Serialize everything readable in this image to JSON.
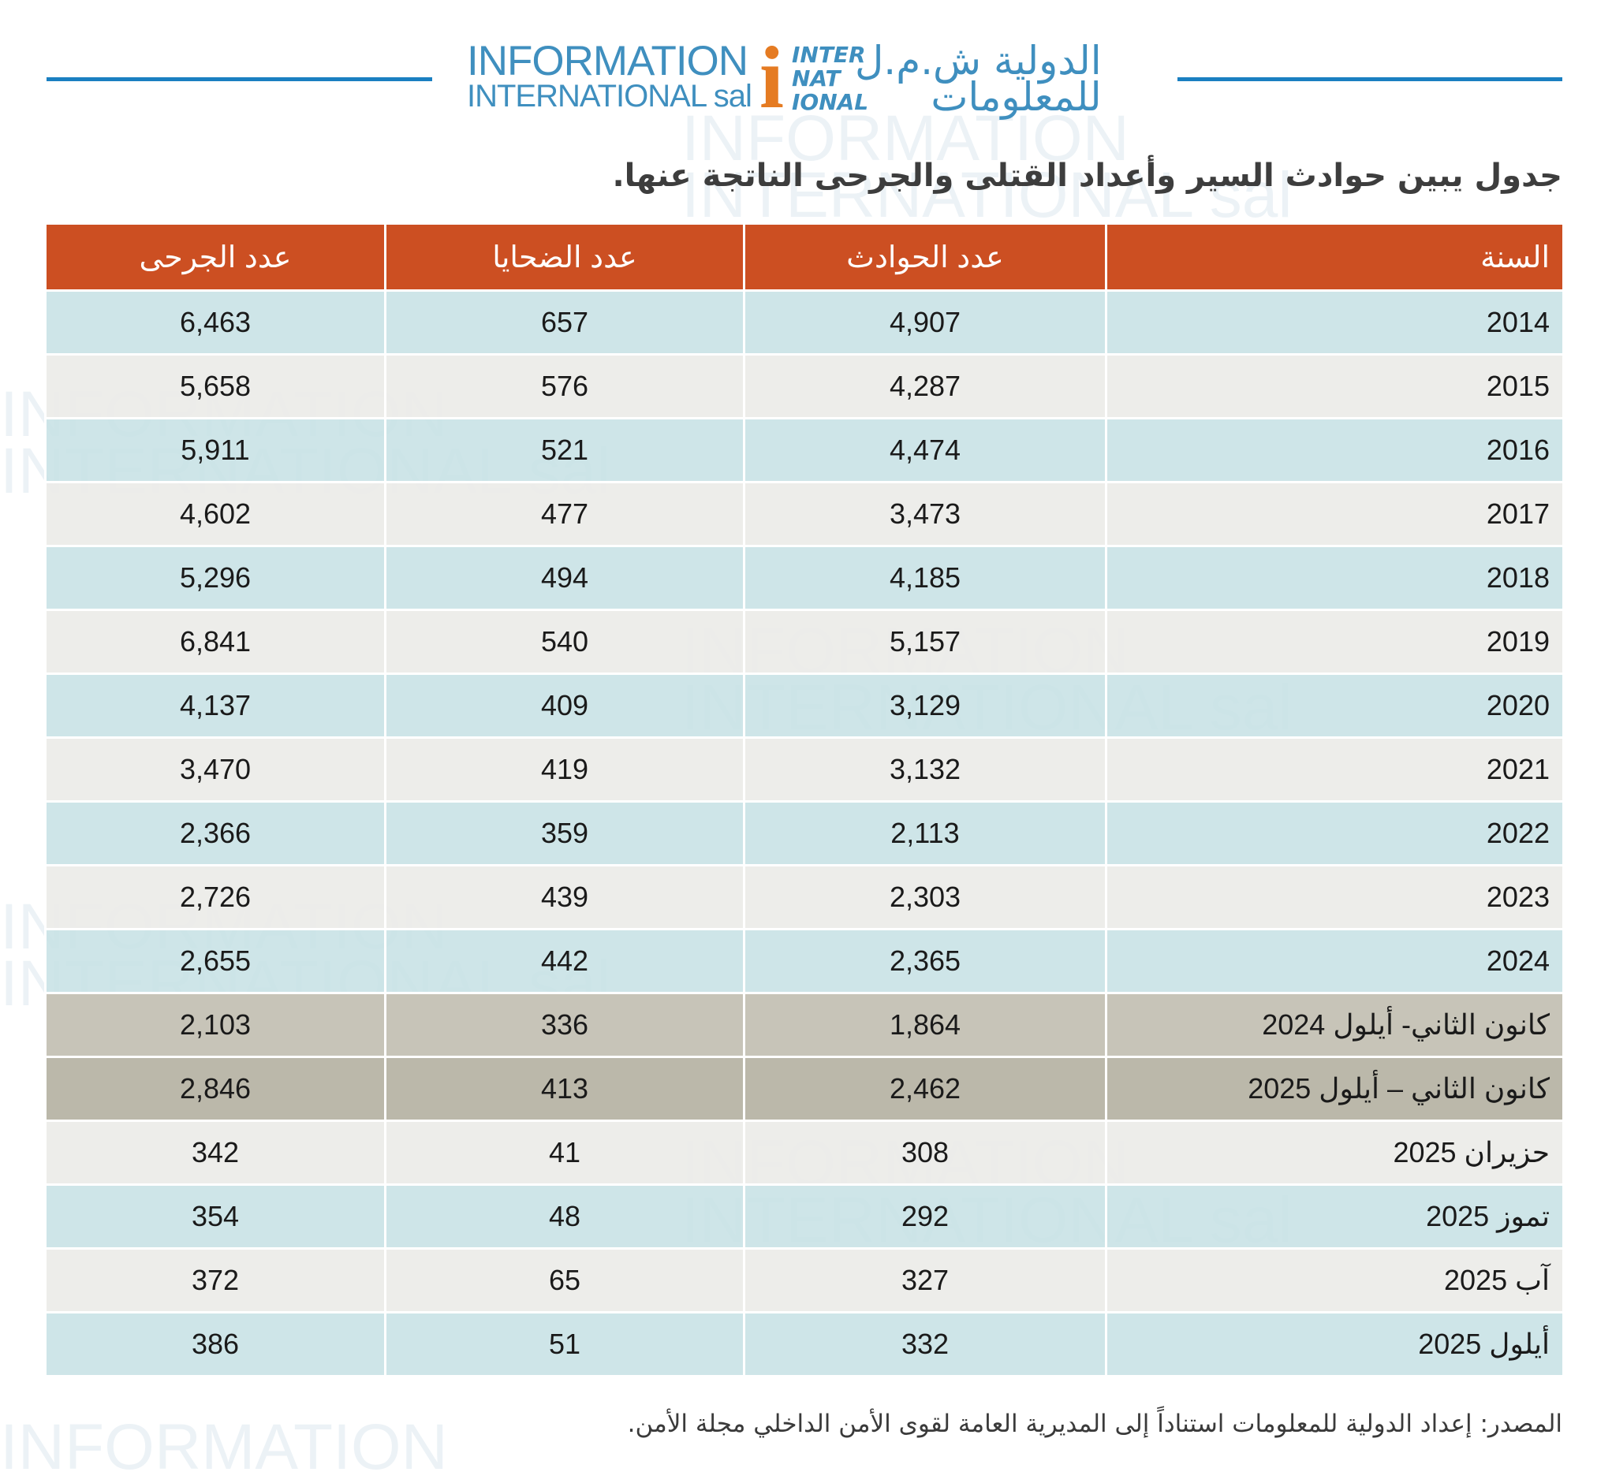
{
  "logo": {
    "en_line1": "INFORMATION",
    "en_line2": "INTERNATIONAL sal",
    "i_letter": "i",
    "mark": "INTER NAT IONAL",
    "ar_line1": "الدولية ش.م.ل",
    "ar_line2": "للمعلومات"
  },
  "watermark": "INFORMATION INTERNATIONAL sal",
  "title": "جدول يبين حوادث السير وأعداد القتلى والجرحى الناتجة عنها.",
  "table": {
    "headers": [
      "السنة",
      "عدد الحوادث",
      "عدد الضحايا",
      "عدد الجرحى"
    ],
    "rows": [
      [
        "2014",
        "4,907",
        "657",
        "6,463"
      ],
      [
        "2015",
        "4,287",
        "576",
        "5,658"
      ],
      [
        "2016",
        "4,474",
        "521",
        "5,911"
      ],
      [
        "2017",
        "3,473",
        "477",
        "4,602"
      ],
      [
        "2018",
        "4,185",
        "494",
        "5,296"
      ],
      [
        "2019",
        "5,157",
        "540",
        "6,841"
      ],
      [
        "2020",
        "3,129",
        "409",
        "4,137"
      ],
      [
        "2021",
        "3,132",
        "419",
        "3,470"
      ],
      [
        "2022",
        "2,113",
        "359",
        "2,366"
      ],
      [
        "2023",
        "2,303",
        "439",
        "2,726"
      ],
      [
        "2024",
        "2,365",
        "442",
        "2,655"
      ],
      [
        "كانون الثاني- أيلول 2024",
        "1,864",
        "336",
        "2,103"
      ],
      [
        "كانون الثاني – أيلول 2025",
        "2,462",
        "413",
        "2,846"
      ],
      [
        "حزيران 2025",
        "308",
        "41",
        "342"
      ],
      [
        "تموز 2025",
        "292",
        "48",
        "354"
      ],
      [
        "آب 2025",
        "327",
        "65",
        "372"
      ],
      [
        "أيلول 2025",
        "332",
        "51",
        "386"
      ]
    ]
  },
  "source": "المصدر: إعداد الدولية للمعلومات استناداً إلى المديرية العامة لقوى الأمن الداخلي مجلة الأمن.",
  "colors": {
    "header": "#cc4f22",
    "row_blue": "#c9e2e6",
    "row_gray": "#ecebe8",
    "row_dark1": "#c7c4b8",
    "row_dark2": "#bbb8aa",
    "rule": "#1a7fc1"
  }
}
